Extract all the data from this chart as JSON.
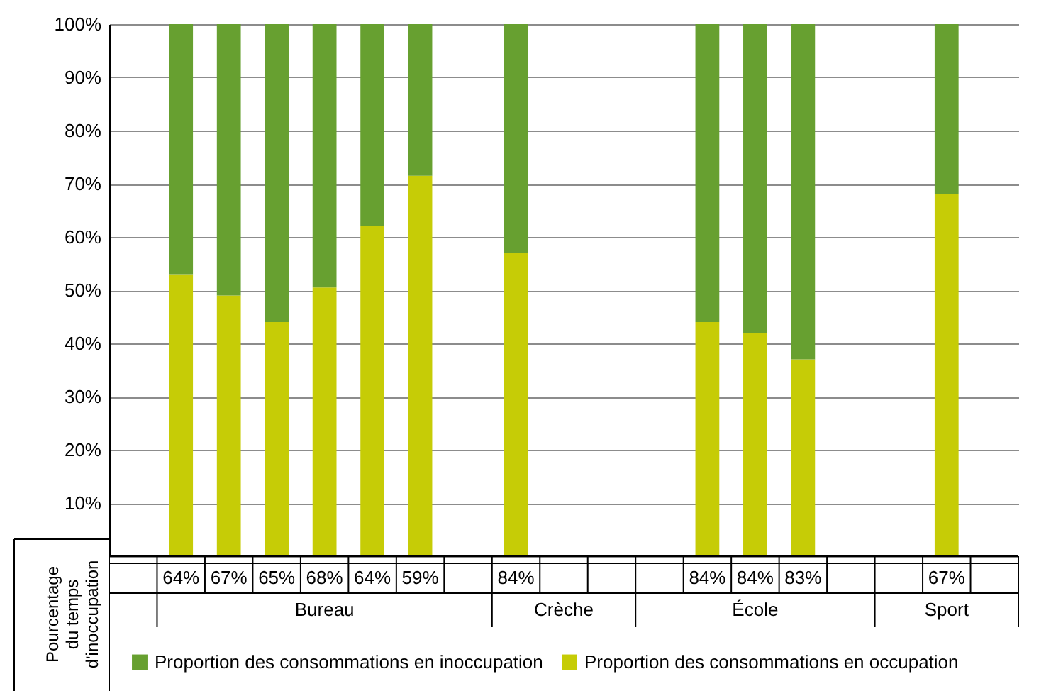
{
  "chart_data": {
    "type": "bar",
    "stacked": true,
    "categories": [
      null,
      "64%",
      "67%",
      "65%",
      "68%",
      "64%",
      "59%",
      null,
      "84%",
      null,
      null,
      null,
      "84%",
      "84%",
      "83%",
      null,
      null,
      "67%",
      null
    ],
    "series": [
      {
        "name": "Proportion des consommations en occupation",
        "color": "#c6cc06",
        "values": [
          null,
          53,
          49,
          44,
          50.5,
          62,
          71.5,
          null,
          57,
          null,
          null,
          null,
          44,
          42,
          37,
          null,
          null,
          68,
          null
        ]
      },
      {
        "name": "Proportion des consommations en inoccupation",
        "color": "#67a030",
        "values": [
          null,
          47,
          51,
          56,
          49.5,
          38,
          28.5,
          null,
          43,
          null,
          null,
          null,
          56,
          58,
          63,
          null,
          null,
          32,
          null
        ]
      }
    ],
    "ylim": [
      0,
      100
    ],
    "yticks": [
      {
        "value": 0,
        "label": null
      },
      {
        "value": 10,
        "label": "10%"
      },
      {
        "value": 20,
        "label": "20%"
      },
      {
        "value": 30,
        "label": "30%"
      },
      {
        "value": 40,
        "label": "40%"
      },
      {
        "value": 50,
        "label": "50%"
      },
      {
        "value": 60,
        "label": "60%"
      },
      {
        "value": 70,
        "label": "70%"
      },
      {
        "value": 80,
        "label": "80%"
      },
      {
        "value": 90,
        "label": "90%"
      },
      {
        "value": 100,
        "label": "100%"
      }
    ],
    "grid": "y",
    "legend": "bottom",
    "annotations": [
      "Bureau",
      "Crèche",
      "École",
      "Sport",
      "Pourcentage du temps d'inoccupation"
    ]
  }
}
